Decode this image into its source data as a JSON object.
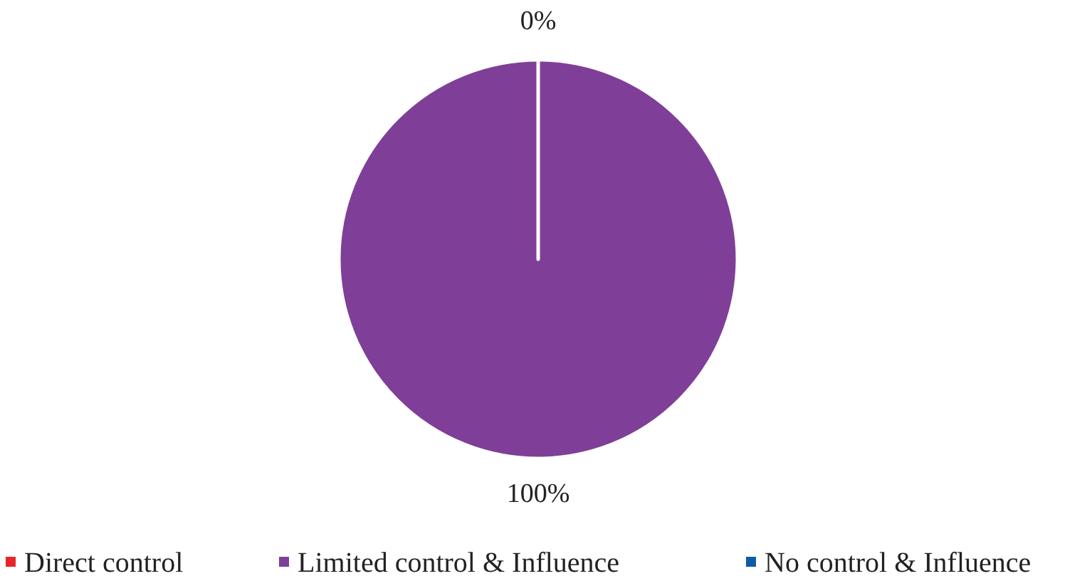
{
  "chart_data": {
    "type": "pie",
    "categories": [
      "Direct control",
      "Limited control & Influence",
      "No control & Influence"
    ],
    "values": [
      0,
      100,
      0
    ],
    "colors": [
      "#e8262a",
      "#7f3f98",
      "#0f5ba7"
    ],
    "value_labels": [
      "0%",
      "100%",
      null
    ],
    "legend": "bottom"
  }
}
